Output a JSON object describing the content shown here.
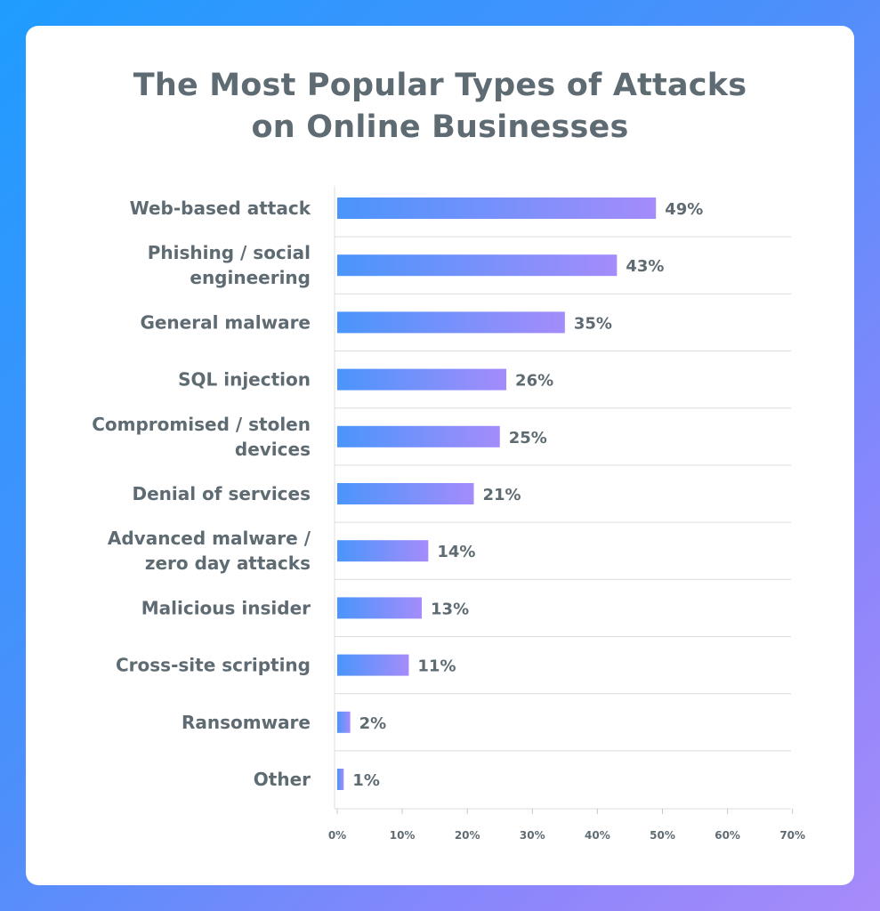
{
  "chart_data": {
    "type": "bar",
    "orientation": "horizontal",
    "title": "The Most Popular Types of Attacks on Online Businesses",
    "title_lines": [
      "The Most Popular Types of Attacks",
      "on Online Businesses"
    ],
    "categories": [
      "Web-based attack",
      "Phishing / social engineering",
      "General malware",
      "SQL injection",
      "Compromised / stolen devices",
      "Denial of services",
      "Advanced malware / zero day attacks",
      "Malicious insider",
      "Cross-site scripting",
      "Ransomware",
      "Other"
    ],
    "category_lines": [
      [
        "Web-based attack"
      ],
      [
        "Phishing / social",
        "engineering"
      ],
      [
        "General malware"
      ],
      [
        "SQL injection"
      ],
      [
        "Compromised / stolen",
        "devices"
      ],
      [
        "Denial of services"
      ],
      [
        "Advanced malware /",
        "zero day attacks"
      ],
      [
        "Malicious insider"
      ],
      [
        "Cross-site scripting"
      ],
      [
        "Ransomware"
      ],
      [
        "Other"
      ]
    ],
    "values": [
      49,
      43,
      35,
      26,
      25,
      21,
      14,
      13,
      11,
      2,
      1
    ],
    "value_labels": [
      "49%",
      "43%",
      "35%",
      "26%",
      "25%",
      "21%",
      "14%",
      "13%",
      "11%",
      "2%",
      "1%"
    ],
    "x_ticks": [
      0,
      10,
      20,
      30,
      40,
      50,
      60,
      70
    ],
    "x_tick_labels": [
      "0%",
      "10%",
      "20%",
      "30%",
      "40%",
      "50%",
      "60%",
      "70%"
    ],
    "xlim": [
      0,
      70
    ],
    "xlabel": "",
    "ylabel": "",
    "grid": "horizontal separators between categories",
    "legend": "none"
  },
  "colors": {
    "background_gradient_start": "#1f9cff",
    "background_gradient_end": "#a78bfa",
    "bar_gradient_start": "#4a95fb",
    "bar_gradient_end": "#a48cfb",
    "text": "#5f6b73",
    "grid": "#dcdcdc"
  }
}
